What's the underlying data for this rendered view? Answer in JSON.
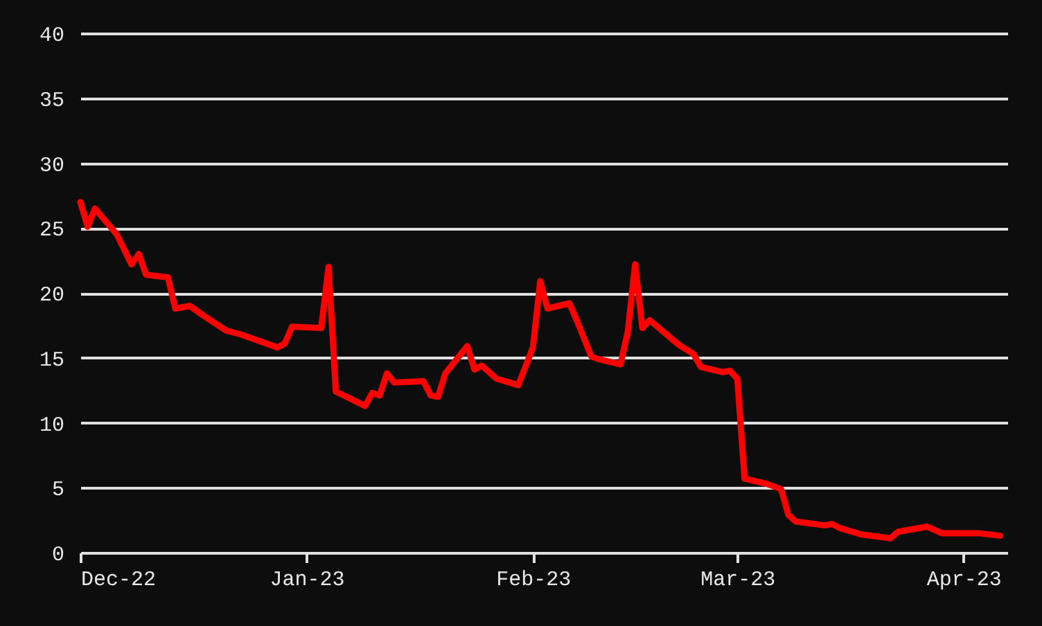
{
  "chart_data": {
    "type": "line",
    "x": [
      "2022-12-01",
      "2022-12-02",
      "2022-12-03",
      "2022-12-06",
      "2022-12-08",
      "2022-12-09",
      "2022-12-10",
      "2022-12-13",
      "2022-12-14",
      "2022-12-16",
      "2022-12-18",
      "2022-12-21",
      "2022-12-23",
      "2022-12-28",
      "2022-12-29",
      "2022-12-30",
      "2023-01-03",
      "2023-01-04",
      "2023-01-05",
      "2023-01-09",
      "2023-01-10",
      "2023-01-11",
      "2023-01-12",
      "2023-01-13",
      "2023-01-17",
      "2023-01-18",
      "2023-01-19",
      "2023-01-20",
      "2023-01-23",
      "2023-01-24",
      "2023-01-25",
      "2023-01-27",
      "2023-01-30",
      "2023-02-01",
      "2023-02-02",
      "2023-02-03",
      "2023-02-06",
      "2023-02-07",
      "2023-02-09",
      "2023-02-10",
      "2023-02-13",
      "2023-02-14",
      "2023-02-15",
      "2023-02-16",
      "2023-02-17",
      "2023-02-21",
      "2023-02-23",
      "2023-02-24",
      "2023-02-27",
      "2023-02-28",
      "2023-03-01",
      "2023-03-02",
      "2023-03-05",
      "2023-03-07",
      "2023-03-08",
      "2023-03-09",
      "2023-03-13",
      "2023-03-14",
      "2023-03-15",
      "2023-03-18",
      "2023-03-22",
      "2023-03-23",
      "2023-03-27",
      "2023-03-29",
      "2023-04-03",
      "2023-04-06"
    ],
    "series": [
      {
        "color": "#ff0000",
        "values": [
          27.0,
          25.1,
          26.5,
          24.5,
          22.2,
          23.0,
          21.4,
          21.2,
          18.8,
          19.0,
          18.2,
          17.1,
          16.8,
          15.8,
          16.1,
          17.4,
          17.3,
          22.0,
          12.4,
          11.3,
          12.3,
          12.1,
          13.8,
          13.1,
          13.2,
          12.1,
          12.0,
          13.8,
          15.9,
          14.1,
          14.4,
          13.4,
          12.9,
          15.8,
          20.9,
          18.8,
          19.2,
          17.9,
          15.1,
          14.9,
          14.5,
          17.0,
          22.2,
          17.3,
          17.9,
          16.0,
          15.3,
          14.3,
          13.9,
          14.0,
          13.4,
          5.7,
          5.3,
          4.9,
          2.9,
          2.4,
          2.1,
          2.2,
          1.9,
          1.4,
          1.1,
          1.6,
          2.0,
          1.5,
          1.5,
          1.3
        ]
      }
    ],
    "xlim": [
      "2022-12-01",
      "2023-04-07"
    ],
    "xticks": [
      {
        "value": "2022-12-01",
        "label": "Dec-22"
      },
      {
        "value": "2023-01-01",
        "label": "Jan-23"
      },
      {
        "value": "2023-02-01",
        "label": "Feb-23"
      },
      {
        "value": "2023-03-01",
        "label": "Mar-23"
      },
      {
        "value": "2023-04-01",
        "label": "Apr-23"
      }
    ],
    "ylim": [
      0,
      40
    ],
    "yticks": [
      0,
      5,
      10,
      15,
      20,
      25,
      30,
      35,
      40
    ],
    "grid": "y",
    "line_style": "solid"
  }
}
